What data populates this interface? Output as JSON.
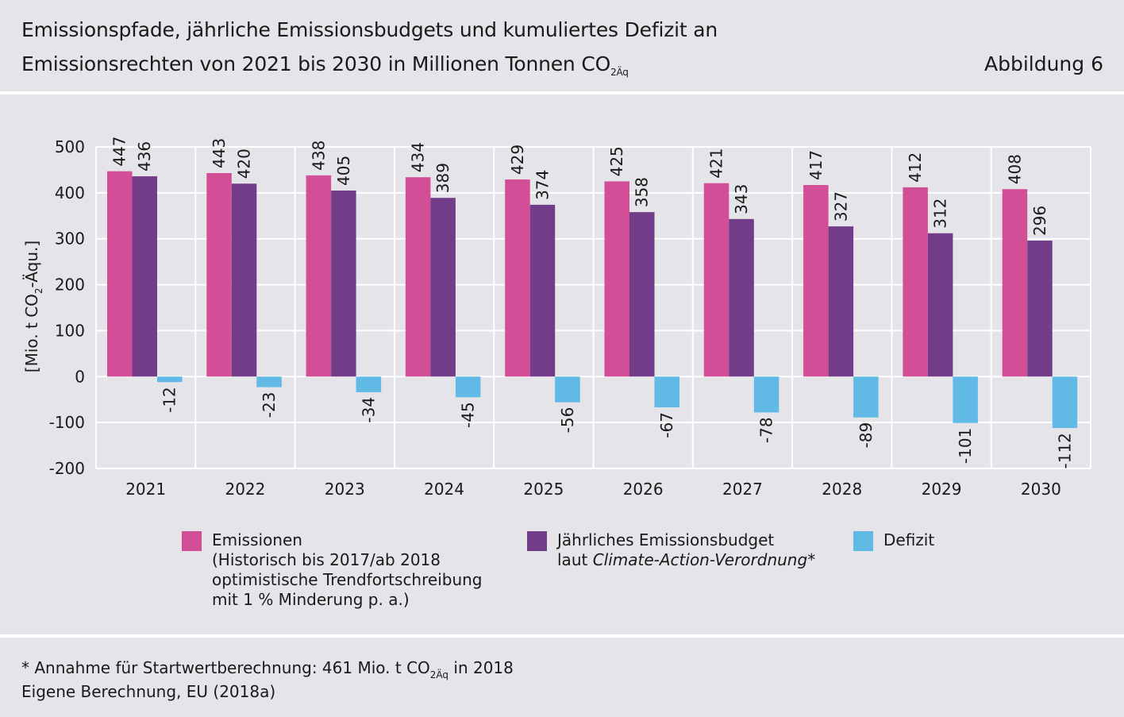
{
  "header": {
    "title_line1": "Emissionspfade, jährliche Emissionsbudgets und kumuliertes Defizit an",
    "title_line2_pre": "Emissionsrechten von 2021 bis 2030 in Millionen Tonnen CO",
    "title_line2_sub": "2Äq",
    "figure_label": "Abbildung 6"
  },
  "chart_data": {
    "type": "bar",
    "categories": [
      "2021",
      "2022",
      "2023",
      "2024",
      "2025",
      "2026",
      "2027",
      "2028",
      "2029",
      "2030"
    ],
    "series": [
      {
        "name": "Emissionen",
        "color": "#d24f97",
        "values": [
          447,
          443,
          438,
          434,
          429,
          425,
          421,
          417,
          412,
          408
        ]
      },
      {
        "name": "Jährliches Emissionsbudget",
        "color": "#733c89",
        "values": [
          436,
          420,
          405,
          389,
          374,
          358,
          343,
          327,
          312,
          296
        ]
      },
      {
        "name": "Defizit",
        "color": "#61b9e6",
        "values": [
          -12,
          -23,
          -34,
          -45,
          -56,
          -67,
          -78,
          -89,
          -101,
          -112
        ]
      }
    ],
    "ylim": [
      -200,
      500
    ],
    "yticks": [
      500,
      400,
      300,
      200,
      100,
      0,
      -100,
      -200
    ],
    "ylabel_pre": "[Mio. t CO",
    "ylabel_sub": "2",
    "ylabel_post": "-Äqu.]",
    "grid": true
  },
  "legend": {
    "emissionen": {
      "color": "#d24f97",
      "lines": [
        "Emissionen",
        "(Historisch bis 2017/ab 2018",
        "optimistische Trendfortschreibung",
        "mit 1 % Minderung p. a.)"
      ]
    },
    "budget": {
      "color": "#733c89",
      "line1": "Jährliches Emissionsbudget",
      "line2_pre": "laut ",
      "line2_italic": "Climate-Action-Verordnung",
      "line2_post": "*"
    },
    "defizit": {
      "color": "#61b9e6",
      "label": "Defizit"
    }
  },
  "footnotes": {
    "line1_pre": "* Annahme für Startwertberechnung: 461 Mio. t CO",
    "line1_sub": "2Äq",
    "line1_post": " in 2018",
    "line2": "Eigene Berechnung, EU (2018a)"
  }
}
